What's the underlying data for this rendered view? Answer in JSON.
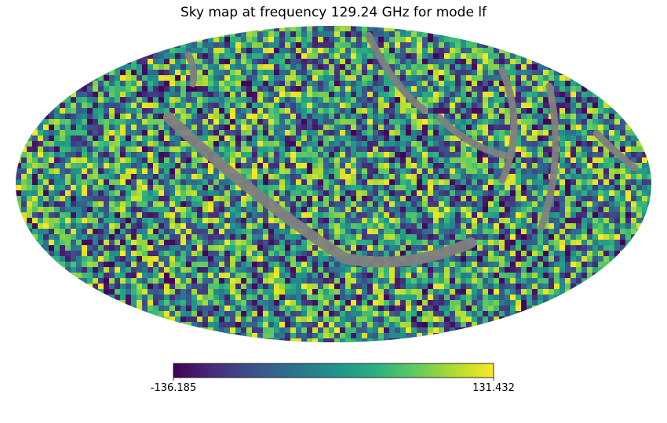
{
  "chart_data": {
    "type": "heatmap",
    "projection": "mollweide",
    "title": "Sky map at frequency 129.24 GHz for mode lf",
    "colormap": "viridis",
    "colorbar": {
      "min": -136.185,
      "max": 131.432,
      "min_label": "-136.185",
      "max_label": "131.432",
      "orientation": "horizontal",
      "placement": "bottom"
    },
    "masked_color": "#808080",
    "masked_regions": "gray pixels along a diagonal band from upper-left to center and arcs on the right side of the map"
  }
}
